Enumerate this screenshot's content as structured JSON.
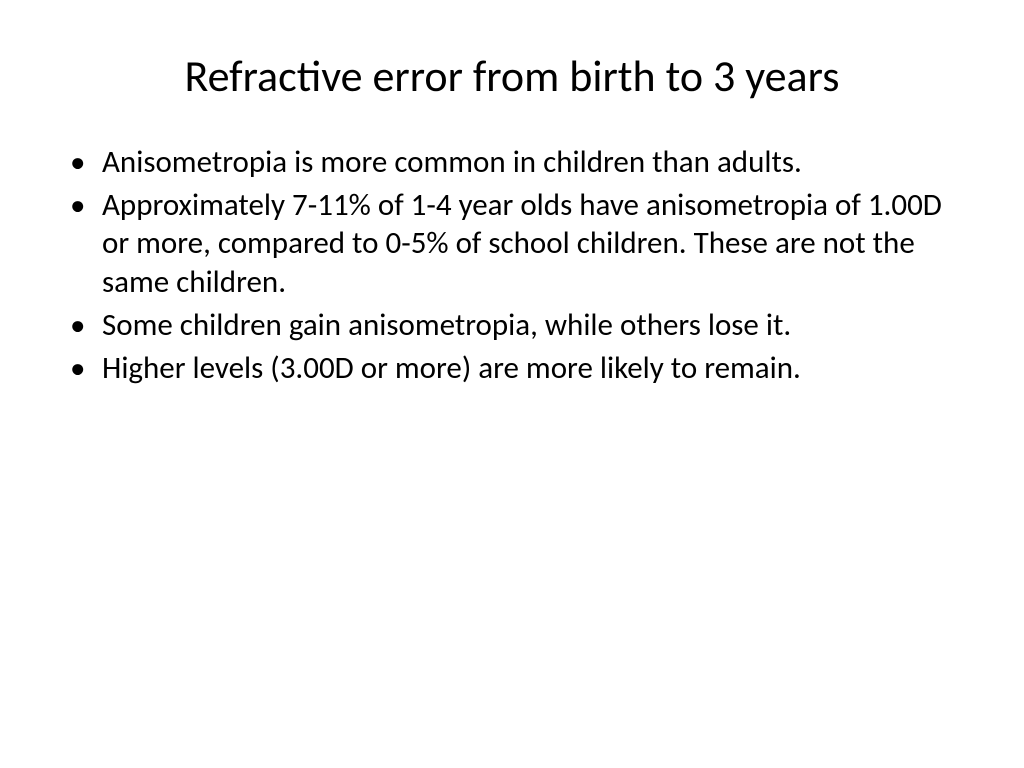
{
  "slide": {
    "title": "Refractive error from birth to 3 years",
    "bullets": [
      "Anisometropia is more common in children than adults.",
      "Approximately 7-11% of 1-4 year olds have anisometropia of 1.00D or more, compared to 0-5% of school children. These are not the same children.",
      "Some children gain anisometropia, while others lose it.",
      "Higher levels (3.00D or more) are more likely to remain."
    ],
    "styling": {
      "background_color": "#ffffff",
      "text_color": "#000000",
      "title_fontsize": 44,
      "title_fontweight": 400,
      "body_fontsize": 31,
      "font_family": "Calibri",
      "bullet_char": "•"
    }
  }
}
